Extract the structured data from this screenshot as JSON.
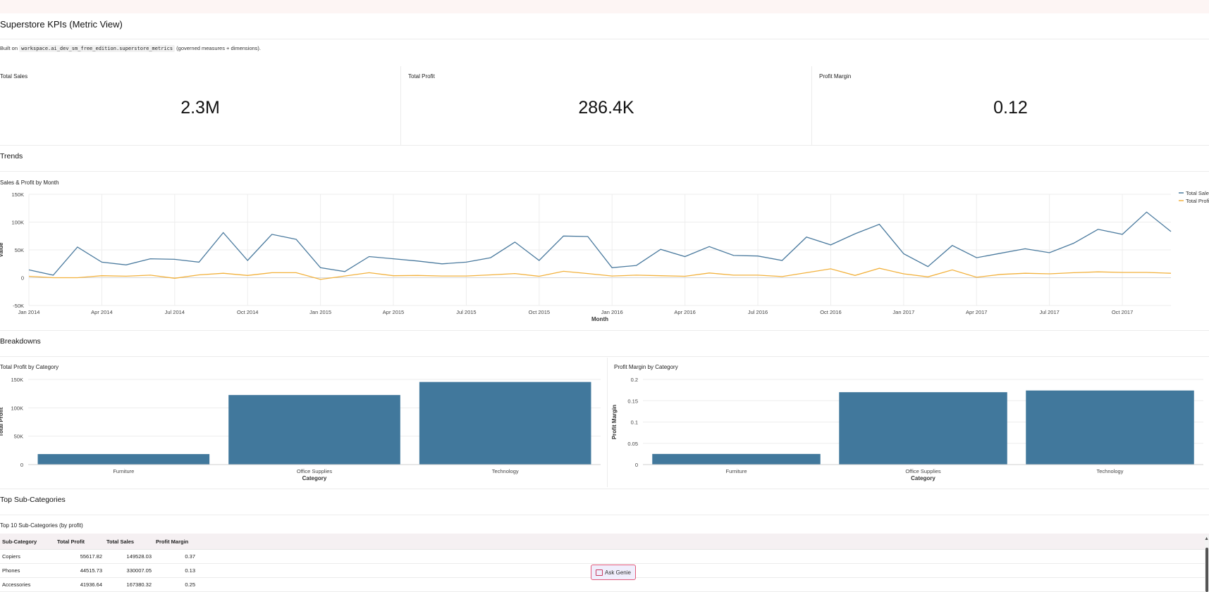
{
  "page": {
    "title": "Superstore KPIs (Metric View)",
    "subtitle_prefix": "Built on",
    "subtitle_code": "workspace.ai_dev_sm_free_edition.superstore_metrics",
    "subtitle_suffix": "(governed measures + dimensions)."
  },
  "kpis": [
    {
      "label": "Total Sales",
      "value": "2.3M"
    },
    {
      "label": "Total Profit",
      "value": "286.4K"
    },
    {
      "label": "Profit Margin",
      "value": "0.12"
    }
  ],
  "sections": {
    "trends": "Trends",
    "breakdowns": "Breakdowns",
    "top_subcategories": "Top Sub-Categories"
  },
  "chart_data": [
    {
      "type": "line",
      "title": "Sales & Profit by Month",
      "xlabel": "Month",
      "ylabel": "Value",
      "ylim": [
        -50000,
        150000
      ],
      "yticks": [
        -50000,
        0,
        50000,
        100000,
        150000
      ],
      "ytick_labels": [
        "-50K",
        "0",
        "50K",
        "100K",
        "150K"
      ],
      "x_tick_labels": [
        "Jan 2014",
        "Apr 2014",
        "Jul 2014",
        "Oct 2014",
        "Jan 2015",
        "Apr 2015",
        "Jul 2015",
        "Oct 2015",
        "Jan 2016",
        "Apr 2016",
        "Jul 2016",
        "Oct 2016",
        "Jan 2017",
        "Apr 2017",
        "Jul 2017",
        "Oct 2017"
      ],
      "legend_position": "top-right",
      "series": [
        {
          "name": "Total Sales",
          "color": "#4a7a9e",
          "values": [
            14000,
            4500,
            55000,
            28000,
            23000,
            34000,
            33000,
            28000,
            81000,
            31000,
            78000,
            69000,
            18000,
            11000,
            38000,
            34000,
            30000,
            25000,
            28000,
            36000,
            64000,
            31000,
            75000,
            74000,
            18000,
            22000,
            51000,
            38000,
            56000,
            40000,
            39000,
            31000,
            73000,
            59000,
            79000,
            96000,
            43000,
            20000,
            58000,
            36000,
            44000,
            52000,
            45000,
            62000,
            87000,
            78000,
            118000,
            83000
          ]
        },
        {
          "name": "Total Profit",
          "color": "#f2b13c",
          "values": [
            2500,
            0,
            0,
            3500,
            2700,
            4500,
            -1000,
            5000,
            8000,
            4000,
            9000,
            9000,
            -3000,
            3000,
            9000,
            3500,
            4000,
            3000,
            3000,
            5000,
            7500,
            2500,
            11500,
            7500,
            3000,
            4500,
            3500,
            2500,
            8500,
            4500,
            4500,
            2000,
            9000,
            16000,
            4000,
            17000,
            7000,
            1500,
            14000,
            700,
            6000,
            8000,
            7000,
            9000,
            10500,
            9500,
            9500,
            8000
          ]
        }
      ]
    },
    {
      "type": "bar",
      "title": "Total Profit by Category",
      "xlabel": "Category",
      "ylabel": "Total Profit",
      "ylim": [
        0,
        150000
      ],
      "yticks": [
        0,
        50000,
        100000,
        150000
      ],
      "ytick_labels": [
        "0",
        "50K",
        "100K",
        "150K"
      ],
      "categories": [
        "Furniture",
        "Office Supplies",
        "Technology"
      ],
      "values": [
        18500,
        122500,
        145500
      ]
    },
    {
      "type": "bar",
      "title": "Profit Margin by Category",
      "xlabel": "Category",
      "ylabel": "Profit Margin",
      "ylim": [
        0,
        0.2
      ],
      "yticks": [
        0,
        0.05,
        0.1,
        0.15,
        0.2
      ],
      "ytick_labels": [
        "0",
        "0.05",
        "0.1",
        "0.15",
        "0.2"
      ],
      "categories": [
        "Furniture",
        "Office Supplies",
        "Technology"
      ],
      "values": [
        0.025,
        0.17,
        0.174
      ]
    }
  ],
  "table": {
    "title": "Top 10 Sub-Categories (by profit)",
    "columns": [
      "Sub-Category",
      "Total Profit",
      "Total Sales",
      "Profit Margin"
    ],
    "rows": [
      [
        "Copiers",
        "55617.82",
        "149528.03",
        "0.37"
      ],
      [
        "Phones",
        "44515.73",
        "330007.05",
        "0.13"
      ],
      [
        "Accessories",
        "41936.64",
        "167380.32",
        "0.25"
      ]
    ]
  },
  "genie_button": {
    "label": "Ask Genie",
    "icon": "genie-icon"
  }
}
